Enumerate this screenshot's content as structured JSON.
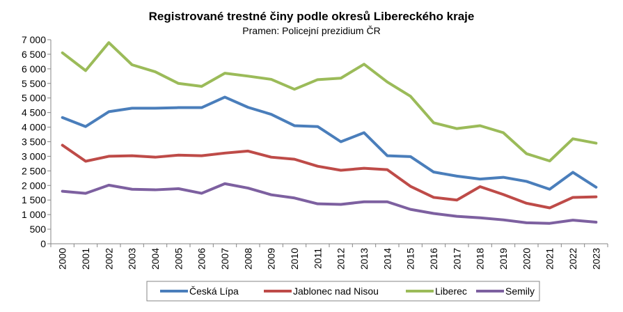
{
  "chart_data": {
    "type": "line",
    "title": "Registrované trestné činy podle okresů Libereckého kraje",
    "subtitle": "Pramen: Policejní prezidium ČR",
    "xlabel": "",
    "ylabel": "",
    "ylim": [
      0,
      7000
    ],
    "ytick_step": 500,
    "yticks": [
      "0",
      "500",
      "1 000",
      "1 500",
      "2 000",
      "2 500",
      "3 000",
      "3 500",
      "4 000",
      "4 500",
      "5 000",
      "5 500",
      "6 000",
      "6 500",
      "7 000"
    ],
    "categories": [
      "2000",
      "2001",
      "2002",
      "2003",
      "2004",
      "2005",
      "2006",
      "2007",
      "2008",
      "2009",
      "2010",
      "2011",
      "2012",
      "2013",
      "2014",
      "2015",
      "2016",
      "2017",
      "2018",
      "2019",
      "2020",
      "2021",
      "2022",
      "2023"
    ],
    "grid": false,
    "legend_position": "bottom",
    "series": [
      {
        "name": "Česká Lípa",
        "color": "#4a7ebb",
        "values": [
          4330,
          4020,
          4530,
          4650,
          4650,
          4670,
          4670,
          5030,
          4680,
          4440,
          4050,
          4020,
          3500,
          3810,
          3020,
          2990,
          2460,
          2320,
          2220,
          2280,
          2140,
          1870,
          2450,
          1940
        ]
      },
      {
        "name": "Jablonec nad Nisou",
        "color": "#be4b48",
        "values": [
          3380,
          2830,
          3000,
          3020,
          2970,
          3040,
          3020,
          3110,
          3180,
          2970,
          2900,
          2660,
          2520,
          2590,
          2540,
          1970,
          1590,
          1500,
          1960,
          1690,
          1390,
          1230,
          1590,
          1610
        ]
      },
      {
        "name": "Liberec",
        "color": "#9bbb59",
        "values": [
          6550,
          5940,
          6900,
          6140,
          5900,
          5500,
          5400,
          5850,
          5750,
          5640,
          5300,
          5630,
          5680,
          6160,
          5550,
          5060,
          4150,
          3950,
          4050,
          3810,
          3090,
          2840,
          3600,
          3450
        ]
      },
      {
        "name": "Semily",
        "color": "#7d60a0",
        "values": [
          1800,
          1730,
          2010,
          1870,
          1850,
          1890,
          1730,
          2060,
          1910,
          1680,
          1570,
          1370,
          1350,
          1440,
          1440,
          1180,
          1040,
          940,
          890,
          820,
          720,
          700,
          810,
          740
        ]
      }
    ]
  }
}
